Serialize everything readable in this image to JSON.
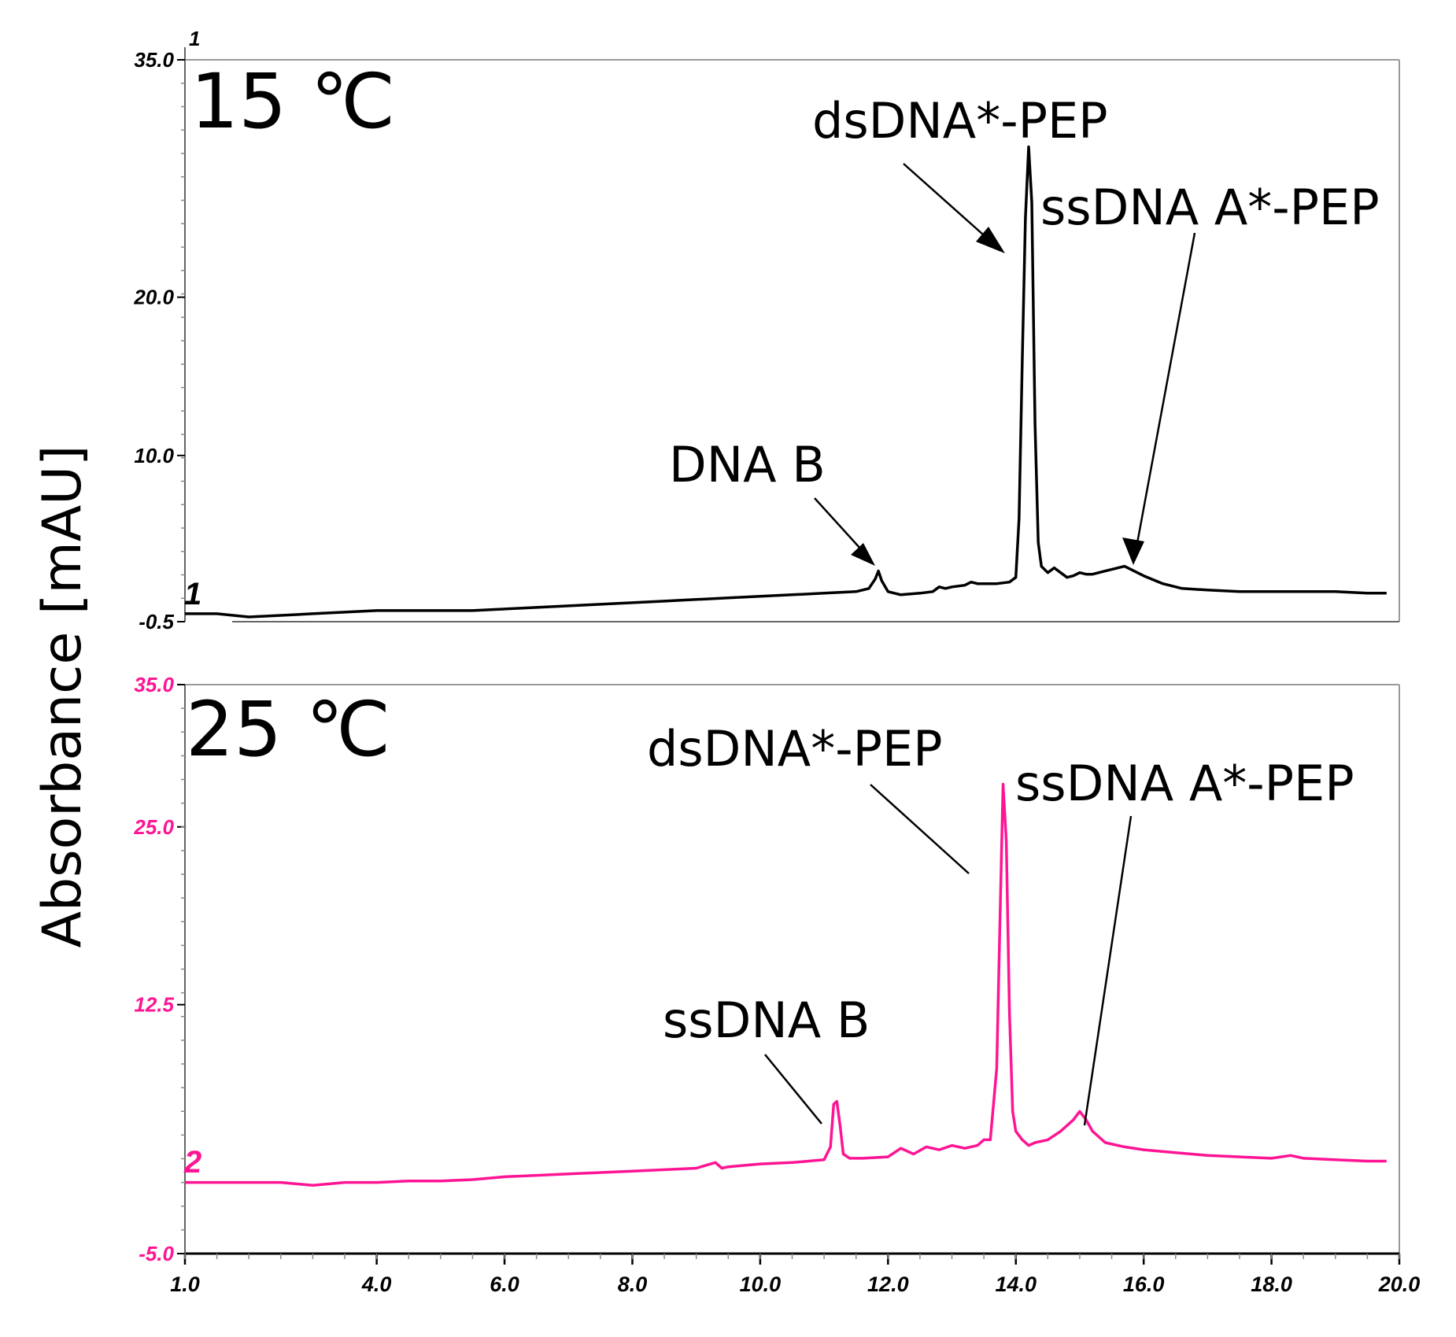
{
  "figure": {
    "ylabel": "Absorbance [mAU]"
  },
  "chart_data": [
    {
      "type": "line",
      "panel_label": "15 ℃",
      "trace_number": "1",
      "top_tick_marker": "1",
      "xlim": [
        1.0,
        20.0
      ],
      "ylim": [
        -0.5,
        35.0
      ],
      "y_ticks": [
        -0.5,
        10.0,
        20.0,
        35.0
      ],
      "y_tick_labels": [
        "-0.5",
        "10.0",
        "20.0",
        "35.0"
      ],
      "grid": false,
      "colors": {
        "line": "#000000",
        "axis_text": "#000000"
      },
      "series": [
        {
          "x": [
            1.0,
            1.5,
            2.0,
            2.5,
            3.0,
            3.5,
            4.0,
            4.5,
            5.0,
            5.5,
            6.0,
            6.5,
            7.0,
            7.5,
            8.0,
            8.5,
            9.0,
            9.5,
            10.0,
            10.5,
            11.0,
            11.5,
            11.7,
            11.8,
            11.85,
            11.9,
            12.0,
            12.2,
            12.5,
            12.7,
            12.8,
            12.9,
            13.0,
            13.2,
            13.3,
            13.4,
            13.5,
            13.7,
            13.9,
            14.0,
            14.05,
            14.1,
            14.15,
            14.2,
            14.25,
            14.3,
            14.35,
            14.4,
            14.5,
            14.6,
            14.7,
            14.8,
            14.9,
            15.0,
            15.1,
            15.2,
            15.4,
            15.6,
            15.7,
            15.8,
            16.0,
            16.3,
            16.6,
            17.0,
            17.5,
            18.0,
            18.5,
            19.0,
            19.5,
            19.8
          ],
          "y": [
            0.0,
            0.0,
            -0.2,
            -0.1,
            0.0,
            0.1,
            0.2,
            0.2,
            0.2,
            0.2,
            0.3,
            0.4,
            0.5,
            0.6,
            0.7,
            0.8,
            0.9,
            1.0,
            1.1,
            1.2,
            1.3,
            1.4,
            1.6,
            2.2,
            2.7,
            2.1,
            1.4,
            1.2,
            1.3,
            1.4,
            1.7,
            1.6,
            1.7,
            1.8,
            2.0,
            1.9,
            1.9,
            1.9,
            2.0,
            2.3,
            6.0,
            16.0,
            25.0,
            29.5,
            26.0,
            12.0,
            4.5,
            3.0,
            2.6,
            2.9,
            2.6,
            2.3,
            2.4,
            2.6,
            2.5,
            2.5,
            2.7,
            2.9,
            3.0,
            2.8,
            2.4,
            1.9,
            1.6,
            1.5,
            1.4,
            1.4,
            1.4,
            1.4,
            1.3,
            1.3
          ]
        }
      ],
      "annotations": [
        {
          "text": "DNA B"
        },
        {
          "text": "dsDNA*-PEP"
        },
        {
          "text": "ssDNA A*-PEP"
        }
      ]
    },
    {
      "type": "line",
      "panel_label": "25 ℃",
      "trace_number": "2",
      "xlabel": "",
      "xlim": [
        1.0,
        20.0
      ],
      "ylim": [
        -5.0,
        35.0
      ],
      "y_ticks": [
        -5.0,
        12.5,
        25.0,
        35.0
      ],
      "y_tick_labels": [
        "-5.0",
        "12.5",
        "25.0",
        "35.0"
      ],
      "x_ticks": [
        1.0,
        4.0,
        6.0,
        8.0,
        10.0,
        12.0,
        14.0,
        16.0,
        18.0,
        20.0
      ],
      "x_tick_labels": [
        "1.0",
        "4.0",
        "6.0",
        "8.0",
        "10.0",
        "12.0",
        "14.0",
        "16.0",
        "18.0",
        "20.0"
      ],
      "grid": false,
      "colors": {
        "line": "#ff1493",
        "axis_text": "#ff1493"
      },
      "series": [
        {
          "x": [
            1.0,
            1.5,
            2.0,
            2.5,
            3.0,
            3.5,
            4.0,
            4.5,
            5.0,
            5.5,
            6.0,
            6.5,
            7.0,
            7.5,
            8.0,
            8.5,
            9.0,
            9.3,
            9.4,
            9.5,
            10.0,
            10.5,
            11.0,
            11.1,
            11.15,
            11.2,
            11.25,
            11.3,
            11.4,
            11.6,
            12.0,
            12.2,
            12.4,
            12.6,
            12.8,
            13.0,
            13.2,
            13.4,
            13.5,
            13.6,
            13.7,
            13.75,
            13.8,
            13.85,
            13.9,
            13.95,
            14.0,
            14.1,
            14.2,
            14.3,
            14.5,
            14.7,
            14.9,
            15.0,
            15.1,
            15.2,
            15.4,
            15.7,
            16.0,
            16.5,
            17.0,
            17.5,
            18.0,
            18.3,
            18.5,
            19.0,
            19.5,
            19.8
          ],
          "y": [
            0.0,
            0.0,
            0.0,
            0.0,
            -0.2,
            0.0,
            0.0,
            0.1,
            0.1,
            0.2,
            0.4,
            0.5,
            0.6,
            0.7,
            0.8,
            0.9,
            1.0,
            1.4,
            1.0,
            1.1,
            1.3,
            1.4,
            1.6,
            2.5,
            5.5,
            5.7,
            4.0,
            2.0,
            1.7,
            1.7,
            1.8,
            2.4,
            2.0,
            2.5,
            2.3,
            2.6,
            2.4,
            2.6,
            3.0,
            3.0,
            8.0,
            18.0,
            28.0,
            24.0,
            12.0,
            5.0,
            3.6,
            3.0,
            2.6,
            2.8,
            3.0,
            3.6,
            4.4,
            5.0,
            4.4,
            3.6,
            2.8,
            2.5,
            2.3,
            2.1,
            1.9,
            1.8,
            1.7,
            1.9,
            1.7,
            1.6,
            1.5,
            1.5
          ]
        }
      ],
      "annotations": [
        {
          "text": "ssDNA B"
        },
        {
          "text": "dsDNA*-PEP"
        },
        {
          "text": "ssDNA A*-PEP"
        }
      ]
    }
  ]
}
